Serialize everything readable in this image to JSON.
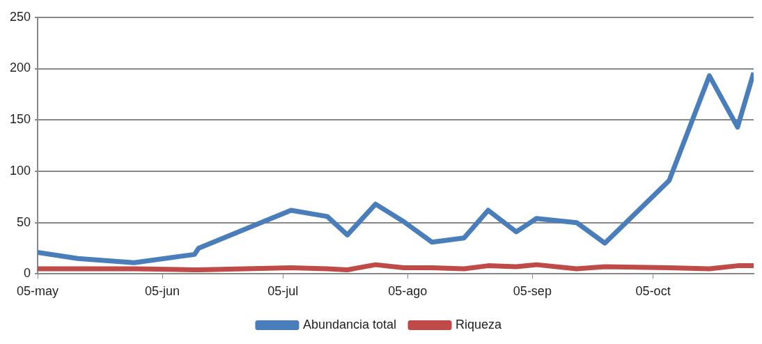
{
  "chart_data": {
    "type": "line",
    "x": [
      "--05-05",
      "--05-15",
      "--05-29",
      "--06-13",
      "--06-14",
      "--07-07",
      "--07-16",
      "--07-21",
      "--07-28",
      "--08-04",
      "--08-11",
      "--08-19",
      "--08-25",
      "--09-01",
      "--09-06",
      "--09-16",
      "--09-23",
      "--10-09",
      "--10-19",
      "--10-26",
      "--10-30"
    ],
    "series": [
      {
        "name": "Abundancia total",
        "color": "#4a7ebb",
        "values": [
          21,
          15,
          11,
          19,
          25,
          62,
          56,
          38,
          68,
          51,
          31,
          35,
          62,
          41,
          54,
          50,
          30,
          91,
          193,
          143,
          196
        ]
      },
      {
        "name": "Riqueza",
        "color": "#be4b48",
        "values": [
          5,
          5,
          5,
          4,
          4,
          6,
          5,
          4,
          9,
          6,
          6,
          5,
          8,
          7,
          9,
          5,
          7,
          6,
          5,
          8,
          8
        ]
      }
    ],
    "xlim": [
      "--05-05",
      "--10-30"
    ],
    "xticks": [
      {
        "value": "--05-05",
        "label": "05-may"
      },
      {
        "value": "--06-05",
        "label": "05-jun"
      },
      {
        "value": "--07-05",
        "label": "05-jul"
      },
      {
        "value": "--08-05",
        "label": "05-ago"
      },
      {
        "value": "--09-05",
        "label": "05-sep"
      },
      {
        "value": "--10-05",
        "label": "05-oct"
      }
    ],
    "ylim": [
      0,
      250
    ],
    "yticks": [
      0,
      50,
      100,
      150,
      200,
      250
    ],
    "grid": "y",
    "legend": "bottom",
    "marker": "none",
    "line_style": "solid"
  }
}
